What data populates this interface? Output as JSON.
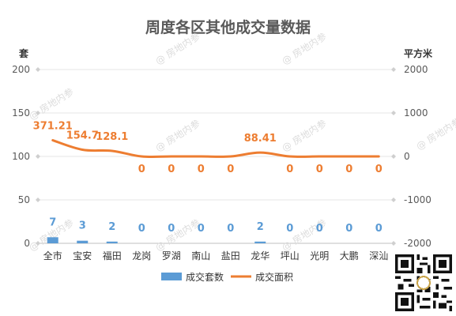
{
  "chart_data": {
    "type": "bar+line",
    "title": "周度各区其他成交量数据",
    "categories": [
      "全市",
      "宝安",
      "福田",
      "龙岗",
      "罗湖",
      "南山",
      "盐田",
      "龙华",
      "坪山",
      "光明",
      "大鹏",
      "深汕"
    ],
    "series": [
      {
        "name": "成交套数",
        "type": "bar",
        "axis": "left",
        "color": "#5b9bd5",
        "values": [
          7,
          3,
          2,
          0,
          0,
          0,
          0,
          2,
          0,
          0,
          0,
          0
        ],
        "labels": [
          "7",
          "3",
          "2",
          "0",
          "0",
          "0",
          "0",
          "2",
          "0",
          "0",
          "0",
          "0"
        ]
      },
      {
        "name": "成交面积",
        "type": "line",
        "axis": "right",
        "color": "#ed7d31",
        "values": [
          371.21,
          154.7,
          128.1,
          0,
          0,
          0,
          0,
          88.41,
          0,
          0,
          0,
          0
        ],
        "labels": [
          "371.21",
          "154.7",
          "128.1",
          "0",
          "0",
          "0",
          "0",
          "88.41",
          "0",
          "0",
          "0",
          "0"
        ]
      }
    ],
    "y_left": {
      "label": "套",
      "range": [
        0,
        200
      ],
      "ticks": [
        0,
        50,
        100,
        150,
        200
      ]
    },
    "y_right": {
      "label": "平方米",
      "range": [
        -2000,
        2000
      ],
      "ticks": [
        -2000,
        -1000,
        0,
        1000,
        2000
      ]
    },
    "grid": true,
    "legend": "bottom"
  },
  "watermark": "@ 房地内参",
  "qr_code": "qr-code-icon"
}
